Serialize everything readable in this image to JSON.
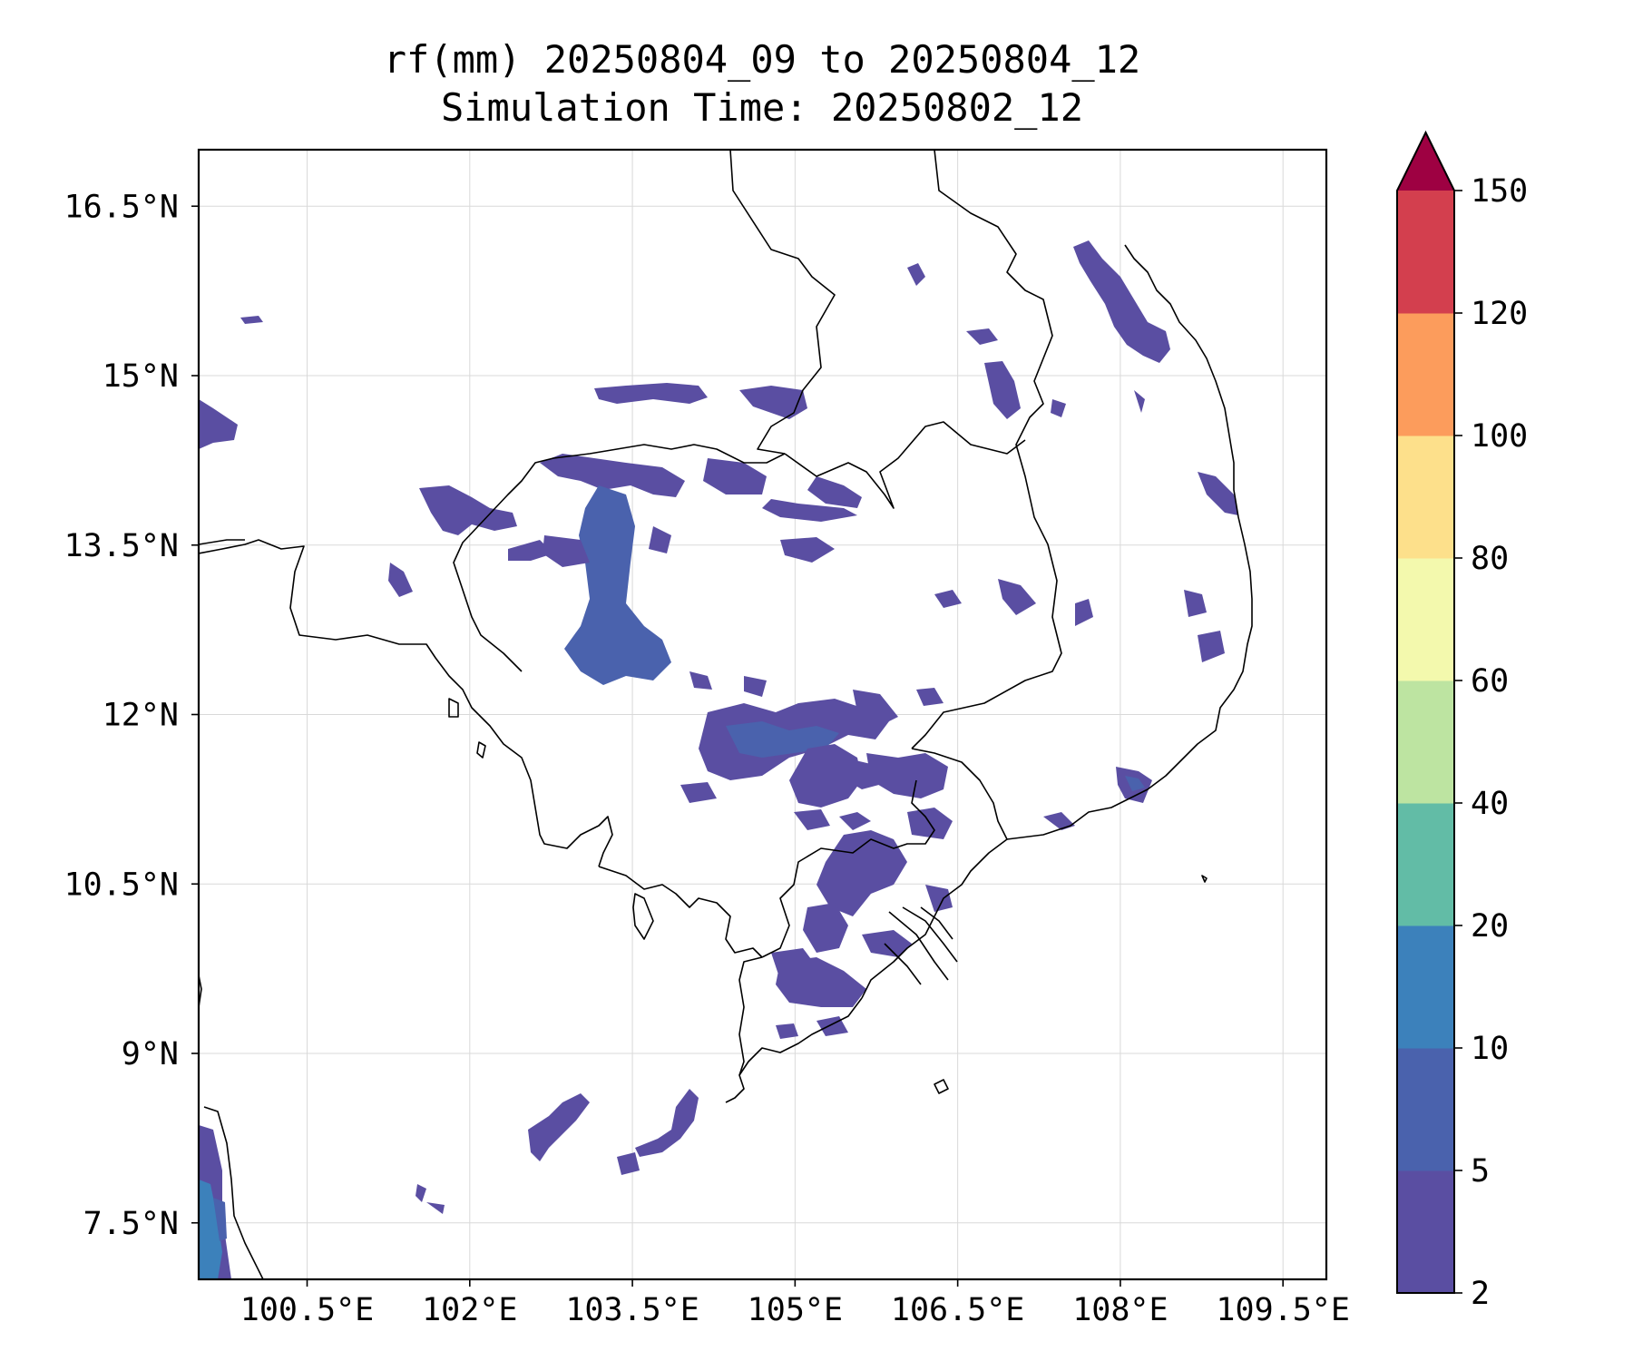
{
  "title": {
    "line1": "rf(mm) 20250804_09 to 20250804_12",
    "line2": "Simulation Time: 20250802_12"
  },
  "map": {
    "lon_range": [
      99.5,
      109.9
    ],
    "lat_range": [
      7.0,
      17.0
    ],
    "gridlines": true,
    "lon_ticks": [
      {
        "value": 100.5,
        "label": "100.5°E"
      },
      {
        "value": 102.0,
        "label": "102°E"
      },
      {
        "value": 103.5,
        "label": "103.5°E"
      },
      {
        "value": 105.0,
        "label": "105°E"
      },
      {
        "value": 106.5,
        "label": "106.5°E"
      },
      {
        "value": 108.0,
        "label": "108°E"
      },
      {
        "value": 109.5,
        "label": "109.5°E"
      }
    ],
    "lat_ticks": [
      {
        "value": 16.5,
        "label": "16.5°N"
      },
      {
        "value": 15.0,
        "label": "15°N"
      },
      {
        "value": 13.5,
        "label": "13.5°N"
      },
      {
        "value": 12.0,
        "label": "12°N"
      },
      {
        "value": 10.5,
        "label": "10.5°N"
      },
      {
        "value": 9.0,
        "label": "9°N"
      },
      {
        "value": 7.5,
        "label": "7.5°N"
      }
    ]
  },
  "colorbar": {
    "levels": [
      {
        "value": "2"
      },
      {
        "value": "5"
      },
      {
        "value": "10"
      },
      {
        "value": "20"
      },
      {
        "value": "40"
      },
      {
        "value": "60"
      },
      {
        "value": "80"
      },
      {
        "value": "100"
      },
      {
        "value": "120"
      },
      {
        "value": "150"
      }
    ],
    "colors": [
      "#5a4ea2",
      "#4a62ad",
      "#3c81bb",
      "#62bca6",
      "#bde4a1",
      "#f3f9ad",
      "#fde08b",
      "#fc9c5c",
      "#d33f4e"
    ],
    "extend_color": "#9e0142",
    "extend": "max"
  },
  "rain_colors": {
    "light": "#5a4ea2",
    "medium": "#4a62ad",
    "heavy": "#3c81bb"
  }
}
